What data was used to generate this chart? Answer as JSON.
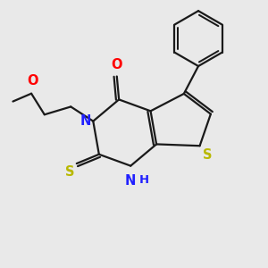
{
  "background_color": "#e9e9e9",
  "bond_color": "#1a1a1a",
  "N_color": "#2020ff",
  "O_color": "#ff0000",
  "S_color": "#b8b800",
  "figsize": [
    3.0,
    3.0
  ],
  "dpi": 100,
  "xlim": [
    0,
    10
  ],
  "ylim": [
    0,
    10
  ]
}
